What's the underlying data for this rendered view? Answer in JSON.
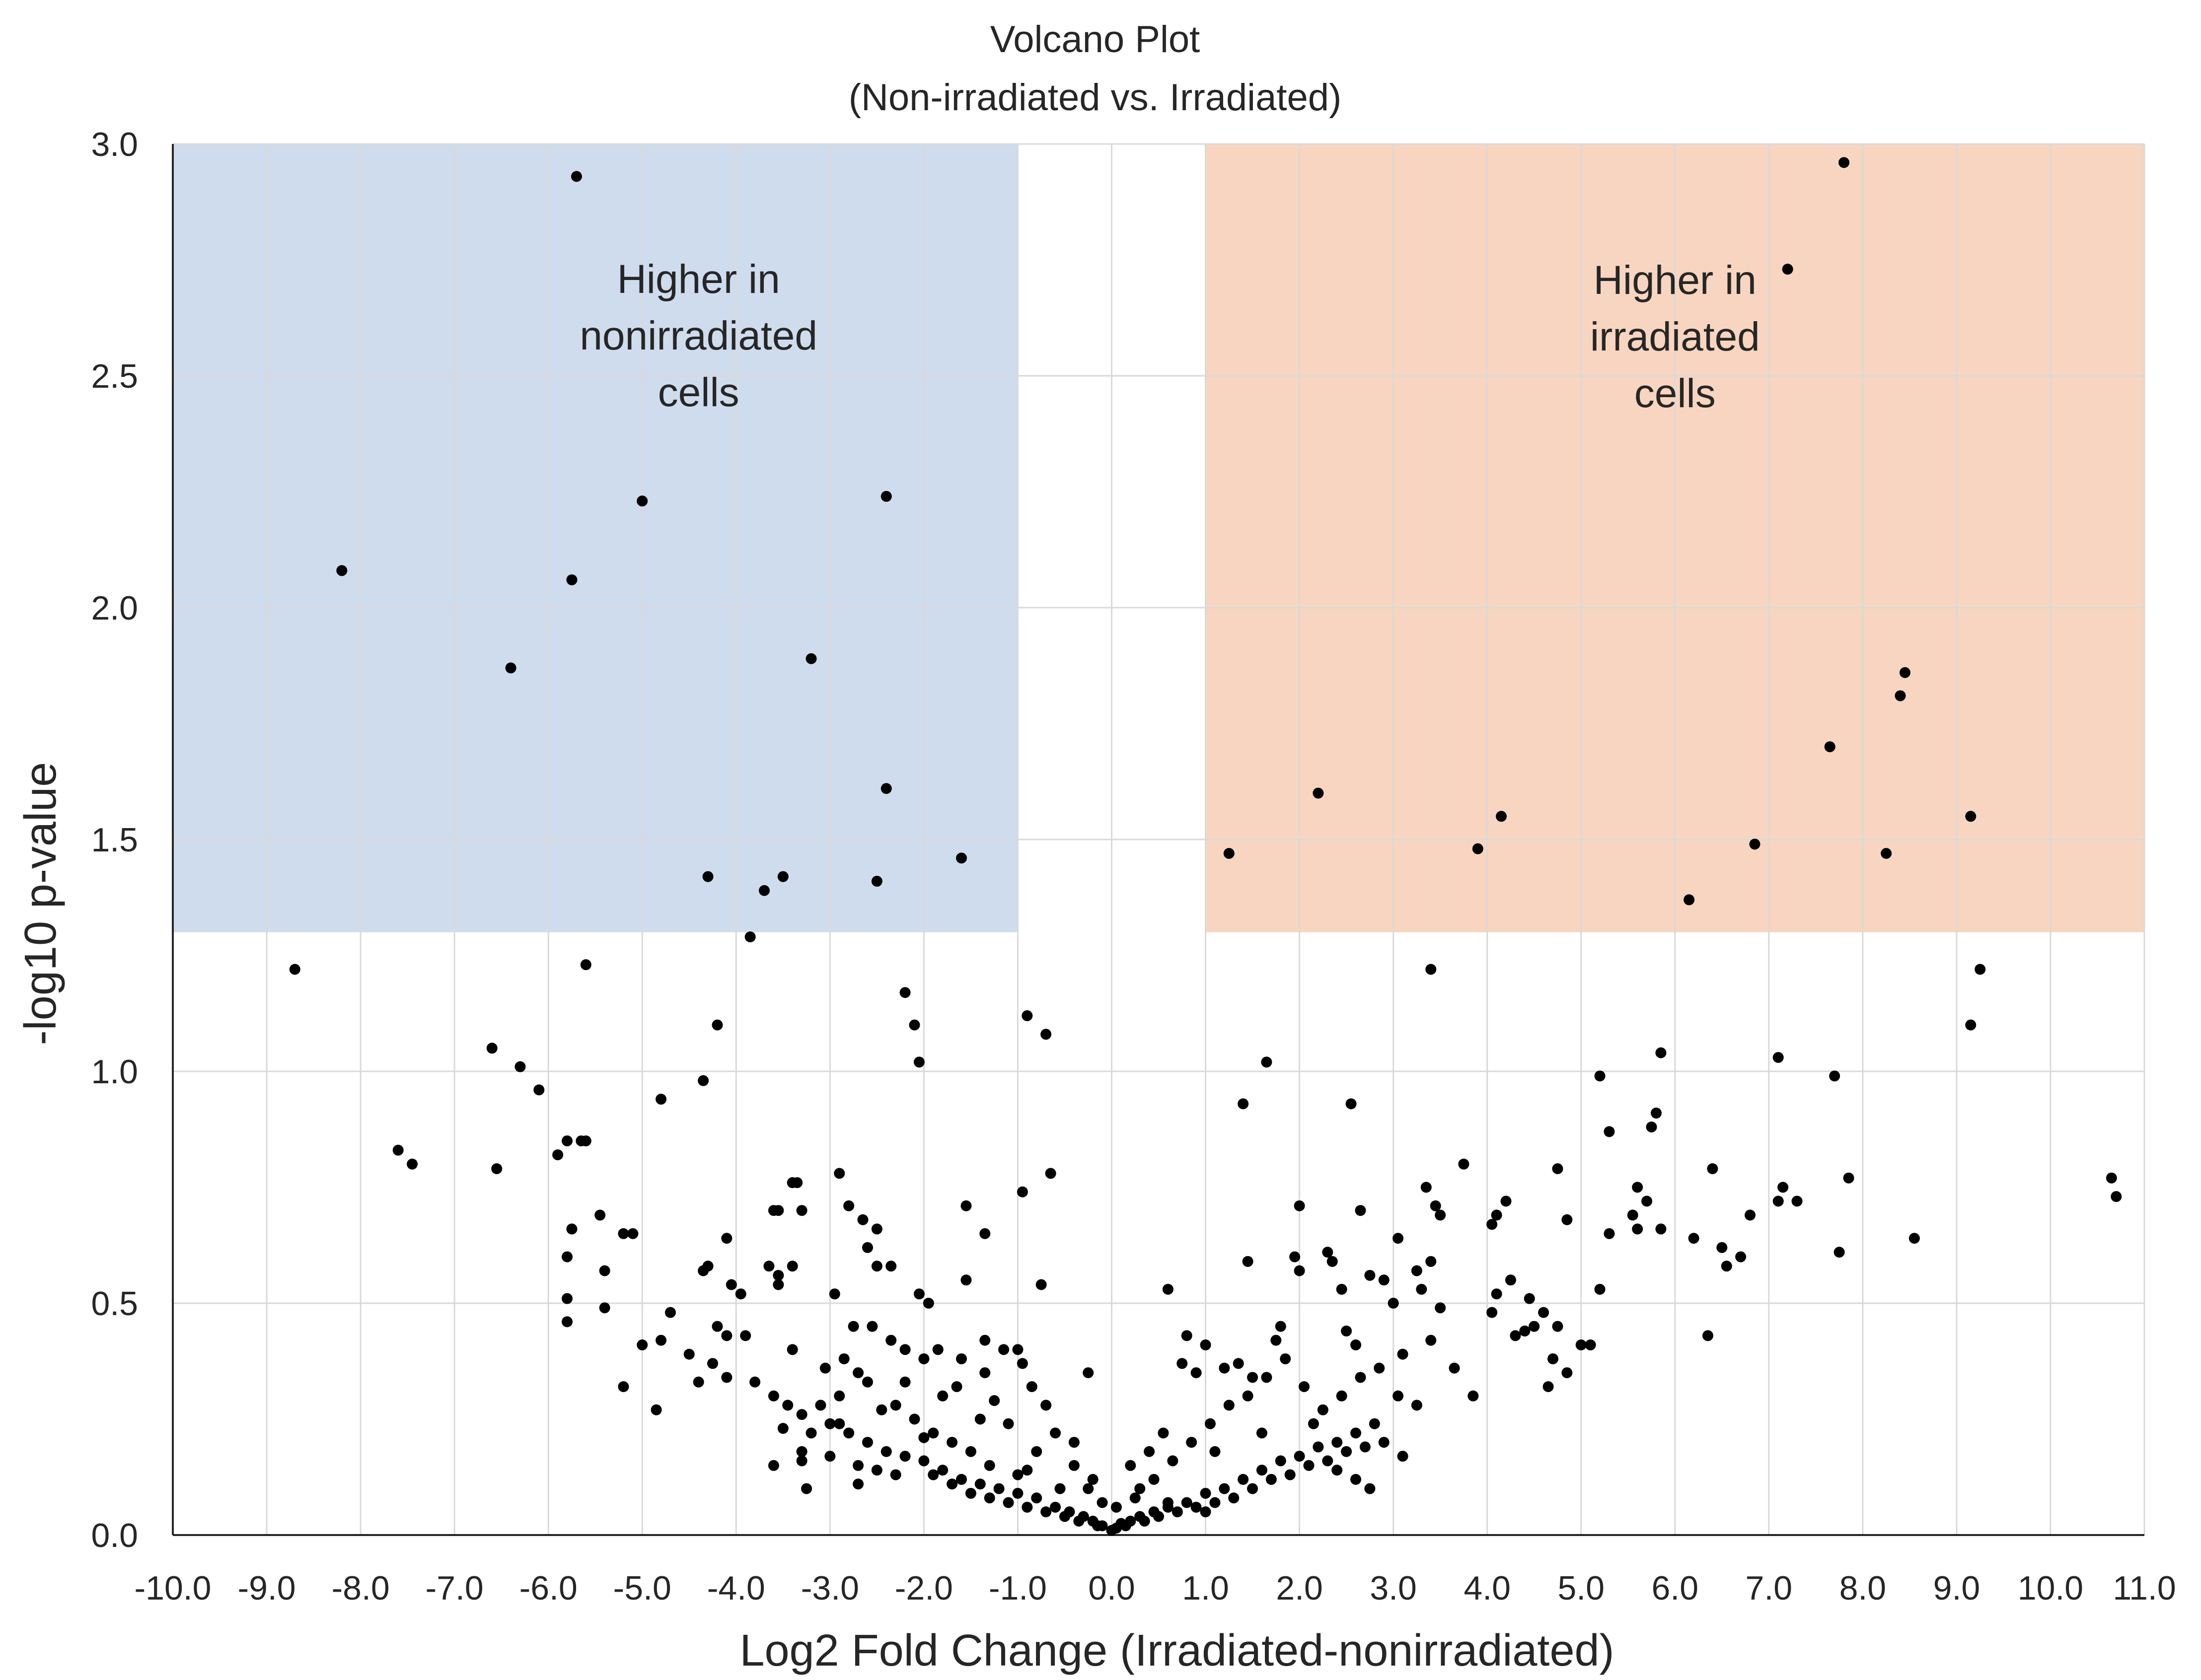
{
  "chart_data": {
    "type": "scatter",
    "title": "Volcano Plot",
    "subtitle": "(Non-irradiated vs. Irradiated)",
    "xlabel": "Log2 Fold Change (Irradiated-nonirradiated)",
    "ylabel": "-log10 p-value",
    "xlim": [
      -10.0,
      11.0
    ],
    "ylim": [
      0.0,
      3.0
    ],
    "x_ticks": [
      "-10.0",
      "-9.0",
      "-8.0",
      "-7.0",
      "-6.0",
      "-5.0",
      "-4.0",
      "-3.0",
      "-2.0",
      "-1.0",
      "0.0",
      "1.0",
      "2.0",
      "3.0",
      "4.0",
      "5.0",
      "6.0",
      "7.0",
      "8.0",
      "9.0",
      "10.0",
      "11.0"
    ],
    "y_ticks": [
      "0.0",
      "0.5",
      "1.0",
      "1.5",
      "2.0",
      "2.5",
      "3.0"
    ],
    "grid": true,
    "regions": [
      {
        "name": "higher-nonirradiated",
        "x_range": [
          -10.0,
          -1.0
        ],
        "y_range": [
          1.3,
          3.0
        ],
        "color": "#cfdcee",
        "label_lines": [
          "Higher in",
          "nonirradiated",
          "cells"
        ]
      },
      {
        "name": "higher-irradiated",
        "x_range": [
          1.0,
          11.0
        ],
        "y_range": [
          1.3,
          3.0
        ],
        "color": "#f8d5c0",
        "label_lines": [
          "Higher in",
          "irradiated",
          "cells"
        ]
      }
    ],
    "points": [
      [
        -5.7,
        2.93
      ],
      [
        -8.2,
        2.08
      ],
      [
        -5.0,
        2.23
      ],
      [
        -2.4,
        2.24
      ],
      [
        -5.75,
        2.06
      ],
      [
        -6.4,
        1.87
      ],
      [
        -3.2,
        1.89
      ],
      [
        -2.4,
        1.61
      ],
      [
        -4.3,
        1.42
      ],
      [
        -3.7,
        1.39
      ],
      [
        -3.5,
        1.42
      ],
      [
        -2.5,
        1.41
      ],
      [
        -1.6,
        1.46
      ],
      [
        7.8,
        2.96
      ],
      [
        7.2,
        2.73
      ],
      [
        8.45,
        1.86
      ],
      [
        8.4,
        1.81
      ],
      [
        7.65,
        1.7
      ],
      [
        2.2,
        1.6
      ],
      [
        4.15,
        1.55
      ],
      [
        9.15,
        1.55
      ],
      [
        1.25,
        1.47
      ],
      [
        3.9,
        1.48
      ],
      [
        6.85,
        1.49
      ],
      [
        8.25,
        1.47
      ],
      [
        6.15,
        1.37
      ],
      [
        -8.7,
        1.22
      ],
      [
        -5.6,
        1.23
      ],
      [
        -3.85,
        1.29
      ],
      [
        -2.2,
        1.17
      ],
      [
        -2.1,
        1.1
      ],
      [
        -4.2,
        1.1
      ],
      [
        -0.9,
        1.12
      ],
      [
        -0.7,
        1.08
      ],
      [
        -6.6,
        1.05
      ],
      [
        -6.3,
        1.01
      ],
      [
        -6.1,
        0.96
      ],
      [
        -4.35,
        0.98
      ],
      [
        -4.8,
        0.94
      ],
      [
        -2.05,
        1.02
      ],
      [
        -7.6,
        0.83
      ],
      [
        -7.45,
        0.8
      ],
      [
        -6.55,
        0.79
      ],
      [
        -5.9,
        0.82
      ],
      [
        -5.8,
        0.85
      ],
      [
        -5.65,
        0.85
      ],
      [
        -5.6,
        0.85
      ],
      [
        -2.9,
        0.78
      ],
      [
        -3.4,
        0.76
      ],
      [
        -0.95,
        0.74
      ],
      [
        -0.65,
        0.78
      ],
      [
        3.4,
        1.22
      ],
      [
        9.25,
        1.22
      ],
      [
        9.15,
        1.1
      ],
      [
        1.65,
        1.02
      ],
      [
        1.4,
        0.93
      ],
      [
        2.55,
        0.93
      ],
      [
        5.2,
        0.99
      ],
      [
        5.85,
        1.04
      ],
      [
        7.1,
        1.03
      ],
      [
        7.7,
        0.99
      ],
      [
        5.3,
        0.87
      ],
      [
        5.75,
        0.88
      ],
      [
        5.8,
        0.91
      ],
      [
        10.65,
        0.77
      ],
      [
        10.7,
        0.73
      ],
      [
        3.75,
        0.8
      ],
      [
        4.75,
        0.79
      ],
      [
        6.4,
        0.79
      ],
      [
        7.85,
        0.77
      ],
      [
        -5.75,
        0.66
      ],
      [
        -5.45,
        0.69
      ],
      [
        -5.2,
        0.65
      ],
      [
        -5.1,
        0.65
      ],
      [
        -5.8,
        0.6
      ],
      [
        -5.8,
        0.51
      ],
      [
        -5.8,
        0.46
      ],
      [
        -5.4,
        0.57
      ],
      [
        -5.4,
        0.49
      ],
      [
        -5.0,
        0.41
      ],
      [
        -4.8,
        0.42
      ],
      [
        -4.7,
        0.48
      ],
      [
        -5.2,
        0.32
      ],
      [
        -4.85,
        0.27
      ],
      [
        -4.5,
        0.39
      ],
      [
        -4.35,
        0.57
      ],
      [
        -4.3,
        0.58
      ],
      [
        -4.1,
        0.64
      ],
      [
        -4.05,
        0.54
      ],
      [
        -3.95,
        0.52
      ],
      [
        -4.2,
        0.45
      ],
      [
        -4.1,
        0.43
      ],
      [
        -3.9,
        0.43
      ],
      [
        -4.25,
        0.37
      ],
      [
        -4.1,
        0.34
      ],
      [
        -4.4,
        0.33
      ],
      [
        -3.65,
        0.58
      ],
      [
        -3.55,
        0.56
      ],
      [
        -3.55,
        0.54
      ],
      [
        -3.4,
        0.58
      ],
      [
        -3.6,
        0.7
      ],
      [
        -3.55,
        0.7
      ],
      [
        -3.3,
        0.7
      ],
      [
        -3.35,
        0.76
      ],
      [
        -2.95,
        0.52
      ],
      [
        -2.8,
        0.71
      ],
      [
        -2.65,
        0.68
      ],
      [
        -2.5,
        0.66
      ],
      [
        -2.5,
        0.58
      ],
      [
        -2.35,
        0.58
      ],
      [
        -2.6,
        0.62
      ],
      [
        -2.05,
        0.52
      ],
      [
        -1.95,
        0.5
      ],
      [
        -1.55,
        0.55
      ],
      [
        -1.35,
        0.65
      ],
      [
        -1.35,
        0.42
      ],
      [
        -1.55,
        0.71
      ],
      [
        -0.75,
        0.54
      ],
      [
        -2.75,
        0.45
      ],
      [
        -2.85,
        0.38
      ],
      [
        -2.7,
        0.35
      ],
      [
        -2.55,
        0.45
      ],
      [
        -2.35,
        0.42
      ],
      [
        -2.2,
        0.4
      ],
      [
        -2.0,
        0.38
      ],
      [
        -1.85,
        0.4
      ],
      [
        -1.6,
        0.38
      ],
      [
        -1.35,
        0.35
      ],
      [
        -1.15,
        0.4
      ],
      [
        -1.0,
        0.4
      ],
      [
        -0.95,
        0.37
      ],
      [
        -0.85,
        0.32
      ],
      [
        -0.7,
        0.28
      ],
      [
        -0.25,
        0.35
      ],
      [
        -3.8,
        0.33
      ],
      [
        -3.6,
        0.3
      ],
      [
        -3.45,
        0.28
      ],
      [
        -3.3,
        0.26
      ],
      [
        -3.1,
        0.28
      ],
      [
        -3.0,
        0.24
      ],
      [
        -2.8,
        0.22
      ],
      [
        -2.6,
        0.2
      ],
      [
        -2.4,
        0.18
      ],
      [
        -2.2,
        0.17
      ],
      [
        -2.0,
        0.16
      ],
      [
        -1.8,
        0.14
      ],
      [
        -1.6,
        0.12
      ],
      [
        -1.4,
        0.11
      ],
      [
        -1.2,
        0.1
      ],
      [
        -1.0,
        0.09
      ],
      [
        -0.8,
        0.08
      ],
      [
        -0.6,
        0.06
      ],
      [
        -0.45,
        0.05
      ],
      [
        -0.3,
        0.04
      ],
      [
        -0.2,
        0.03
      ],
      [
        -0.1,
        0.02
      ],
      [
        0.0,
        0.01
      ],
      [
        0.05,
        0.015
      ],
      [
        0.1,
        0.025
      ],
      [
        0.2,
        0.03
      ],
      [
        0.3,
        0.04
      ],
      [
        0.45,
        0.05
      ],
      [
        0.6,
        0.06
      ],
      [
        0.8,
        0.07
      ],
      [
        1.0,
        0.09
      ],
      [
        1.2,
        0.1
      ],
      [
        1.4,
        0.12
      ],
      [
        1.6,
        0.14
      ],
      [
        1.8,
        0.16
      ],
      [
        2.0,
        0.17
      ],
      [
        2.2,
        0.19
      ],
      [
        2.4,
        0.2
      ],
      [
        2.6,
        0.22
      ],
      [
        2.8,
        0.24
      ],
      [
        -3.6,
        0.15
      ],
      [
        -3.3,
        0.16
      ],
      [
        -3.0,
        0.17
      ],
      [
        -2.7,
        0.15
      ],
      [
        -2.5,
        0.14
      ],
      [
        -2.3,
        0.13
      ],
      [
        -1.9,
        0.13
      ],
      [
        -1.7,
        0.11
      ],
      [
        -1.5,
        0.09
      ],
      [
        -1.3,
        0.08
      ],
      [
        -1.1,
        0.07
      ],
      [
        -0.9,
        0.06
      ],
      [
        -0.7,
        0.05
      ],
      [
        -0.5,
        0.04
      ],
      [
        -0.35,
        0.03
      ],
      [
        -0.15,
        0.02
      ],
      [
        0.15,
        0.02
      ],
      [
        0.35,
        0.03
      ],
      [
        0.5,
        0.04
      ],
      [
        0.7,
        0.05
      ],
      [
        0.9,
        0.06
      ],
      [
        1.1,
        0.07
      ],
      [
        1.3,
        0.08
      ],
      [
        1.5,
        0.1
      ],
      [
        1.7,
        0.12
      ],
      [
        1.9,
        0.13
      ],
      [
        2.1,
        0.15
      ],
      [
        2.3,
        0.16
      ],
      [
        2.5,
        0.18
      ],
      [
        2.7,
        0.19
      ],
      [
        2.9,
        0.2
      ],
      [
        3.1,
        0.17
      ],
      [
        -3.2,
        0.22
      ],
      [
        -2.9,
        0.3
      ],
      [
        -2.6,
        0.33
      ],
      [
        -2.3,
        0.28
      ],
      [
        -2.1,
        0.25
      ],
      [
        -1.9,
        0.22
      ],
      [
        -1.7,
        0.2
      ],
      [
        -1.5,
        0.18
      ],
      [
        -1.3,
        0.15
      ],
      [
        -1.0,
        0.13
      ],
      [
        -0.8,
        0.18
      ],
      [
        -0.6,
        0.22
      ],
      [
        -0.4,
        0.15
      ],
      [
        -0.25,
        0.1
      ],
      [
        0.25,
        0.08
      ],
      [
        0.45,
        0.12
      ],
      [
        0.65,
        0.16
      ],
      [
        0.85,
        0.2
      ],
      [
        1.05,
        0.24
      ],
      [
        1.25,
        0.28
      ],
      [
        1.45,
        0.3
      ],
      [
        1.65,
        0.34
      ],
      [
        1.85,
        0.38
      ],
      [
        2.05,
        0.32
      ],
      [
        2.25,
        0.27
      ],
      [
        2.45,
        0.3
      ],
      [
        2.65,
        0.34
      ],
      [
        2.85,
        0.36
      ],
      [
        3.05,
        0.3
      ],
      [
        3.25,
        0.28
      ],
      [
        0.6,
        0.53
      ],
      [
        0.8,
        0.43
      ],
      [
        1.0,
        0.41
      ],
      [
        0.75,
        0.37
      ],
      [
        0.9,
        0.35
      ],
      [
        1.2,
        0.36
      ],
      [
        1.35,
        0.37
      ],
      [
        1.5,
        0.34
      ],
      [
        1.75,
        0.42
      ],
      [
        1.8,
        0.45
      ],
      [
        1.45,
        0.59
      ],
      [
        1.95,
        0.6
      ],
      [
        2.0,
        0.57
      ],
      [
        2.0,
        0.71
      ],
      [
        2.35,
        0.59
      ],
      [
        2.45,
        0.53
      ],
      [
        2.65,
        0.7
      ],
      [
        2.5,
        0.44
      ],
      [
        2.6,
        0.41
      ],
      [
        2.75,
        0.56
      ],
      [
        2.9,
        0.55
      ],
      [
        3.0,
        0.5
      ],
      [
        3.05,
        0.64
      ],
      [
        3.25,
        0.57
      ],
      [
        3.3,
        0.53
      ],
      [
        3.45,
        0.71
      ],
      [
        3.5,
        0.69
      ],
      [
        3.5,
        0.49
      ],
      [
        3.4,
        0.59
      ],
      [
        3.1,
        0.39
      ],
      [
        3.4,
        0.42
      ],
      [
        3.65,
        0.36
      ],
      [
        3.85,
        0.3
      ],
      [
        3.35,
        0.75
      ],
      [
        4.05,
        0.48
      ],
      [
        4.1,
        0.52
      ],
      [
        4.05,
        0.67
      ],
      [
        4.1,
        0.69
      ],
      [
        4.2,
        0.72
      ],
      [
        4.25,
        0.55
      ],
      [
        4.3,
        0.43
      ],
      [
        4.4,
        0.44
      ],
      [
        4.5,
        0.45
      ],
      [
        4.45,
        0.51
      ],
      [
        4.6,
        0.48
      ],
      [
        4.7,
        0.38
      ],
      [
        4.75,
        0.45
      ],
      [
        4.85,
        0.68
      ],
      [
        4.85,
        0.35
      ],
      [
        5.0,
        0.41
      ],
      [
        5.1,
        0.41
      ],
      [
        5.2,
        0.53
      ],
      [
        5.3,
        0.65
      ],
      [
        5.55,
        0.69
      ],
      [
        5.6,
        0.75
      ],
      [
        5.6,
        0.66
      ],
      [
        5.85,
        0.66
      ],
      [
        6.2,
        0.64
      ],
      [
        6.35,
        0.43
      ],
      [
        6.5,
        0.62
      ],
      [
        6.55,
        0.58
      ],
      [
        6.7,
        0.6
      ],
      [
        6.8,
        0.69
      ],
      [
        7.1,
        0.72
      ],
      [
        7.15,
        0.75
      ],
      [
        7.3,
        0.72
      ],
      [
        7.75,
        0.61
      ],
      [
        8.55,
        0.64
      ],
      [
        5.7,
        0.72
      ],
      [
        4.65,
        0.32
      ],
      [
        2.3,
        0.61
      ],
      [
        0.2,
        0.15
      ],
      [
        0.4,
        0.18
      ],
      [
        0.55,
        0.22
      ],
      [
        1.1,
        0.18
      ],
      [
        1.6,
        0.22
      ],
      [
        2.15,
        0.24
      ],
      [
        2.4,
        0.14
      ],
      [
        2.6,
        0.12
      ],
      [
        2.75,
        0.1
      ],
      [
        -0.2,
        0.12
      ],
      [
        -0.55,
        0.1
      ],
      [
        -1.8,
        0.3
      ],
      [
        -2.2,
        0.33
      ],
      [
        -1.4,
        0.25
      ],
      [
        -3.05,
        0.36
      ],
      [
        -3.4,
        0.4
      ],
      [
        -3.5,
        0.23
      ],
      [
        -3.3,
        0.18
      ],
      [
        -2.0,
        0.21
      ],
      [
        -1.1,
        0.24
      ],
      [
        -0.9,
        0.14
      ],
      [
        -0.4,
        0.2
      ],
      [
        -0.1,
        0.07
      ],
      [
        0.05,
        0.06
      ],
      [
        0.3,
        0.1
      ],
      [
        0.6,
        0.07
      ],
      [
        1.0,
        0.05
      ],
      [
        -1.25,
        0.29
      ],
      [
        -2.45,
        0.27
      ],
      [
        -1.65,
        0.32
      ],
      [
        -2.9,
        0.24
      ],
      [
        -3.25,
        0.1
      ],
      [
        -2.7,
        0.11
      ]
    ]
  }
}
